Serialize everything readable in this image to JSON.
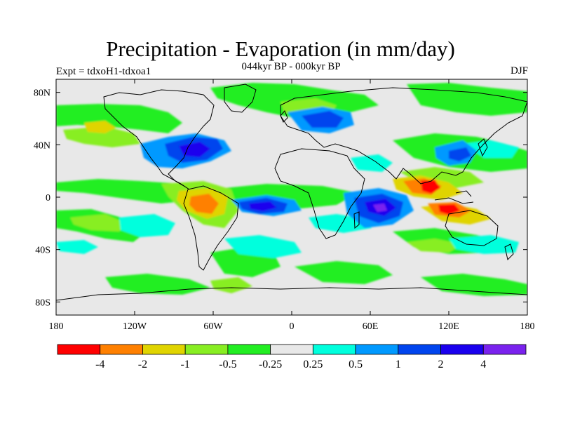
{
  "title": "Precipitation - Evaporation (in mm/day)",
  "subtitle": "044kyr BP - 000kyr BP",
  "experiment": "Expt = tdxoH1-tdxoa1",
  "season": "DJF",
  "map": {
    "lon_range": [
      -180,
      180
    ],
    "lat_range": [
      -90,
      90
    ],
    "y_tick_labels": [
      "80N",
      "40N",
      "0",
      "40S",
      "80S"
    ],
    "y_tick_values": [
      80,
      40,
      0,
      -40,
      -80
    ],
    "x_tick_labels": [
      "180",
      "120W",
      "60W",
      "0",
      "60E",
      "120E",
      "180"
    ],
    "x_tick_values": [
      -180,
      -120,
      -60,
      0,
      60,
      120,
      180
    ],
    "background_color": "#e8e8e8"
  },
  "colorbar": {
    "colors": [
      "#ff0000",
      "#ff8000",
      "#e0d400",
      "#88ee22",
      "#22ee22",
      "#e8e8e8",
      "#00ffdd",
      "#0099ff",
      "#0044ee",
      "#1a00ee",
      "#7a22ee"
    ],
    "labels": [
      "-4",
      "-2",
      "-1",
      "-0.5",
      "-0.25",
      "0.25",
      "0.5",
      "1",
      "2",
      "4"
    ]
  }
}
